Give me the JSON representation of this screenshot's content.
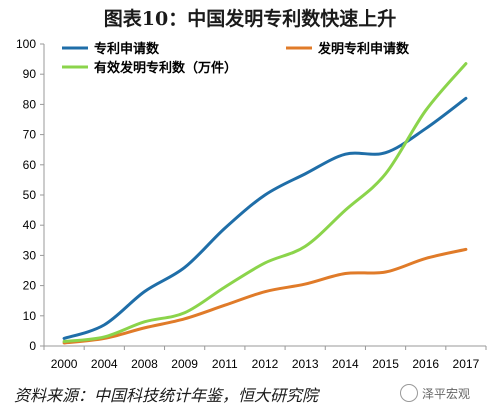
{
  "title": "图表10：中国发明专利数快速上升",
  "source": "资料来源：中国科技统计年鉴，恒大研究院",
  "watermark": "泽平宏观",
  "chart_data": {
    "type": "line",
    "categories": [
      "2000",
      "2004",
      "2008",
      "2009",
      "2011",
      "2012",
      "2013",
      "2014",
      "2015",
      "2016",
      "2017"
    ],
    "yticks": [
      0,
      10,
      20,
      30,
      40,
      50,
      60,
      70,
      80,
      90,
      100
    ],
    "ylim": [
      0,
      100
    ],
    "grid": false,
    "legend": "top-left",
    "series": [
      {
        "name": "专利申请数",
        "color": "#1f6ea8",
        "values": [
          2.5,
          7,
          18,
          26,
          39,
          50,
          57,
          63.5,
          64,
          72,
          82
        ]
      },
      {
        "name": "发明专利申请数",
        "color": "#e07b29",
        "values": [
          1,
          2.5,
          6,
          9,
          13.5,
          18,
          20.5,
          24,
          24.5,
          29,
          32
        ]
      },
      {
        "name": "有效发明专利数（万件）",
        "color": "#8bd44b",
        "values": [
          1.5,
          3,
          8,
          11,
          19.5,
          27.5,
          33,
          45,
          57,
          78,
          93.5
        ]
      }
    ]
  }
}
